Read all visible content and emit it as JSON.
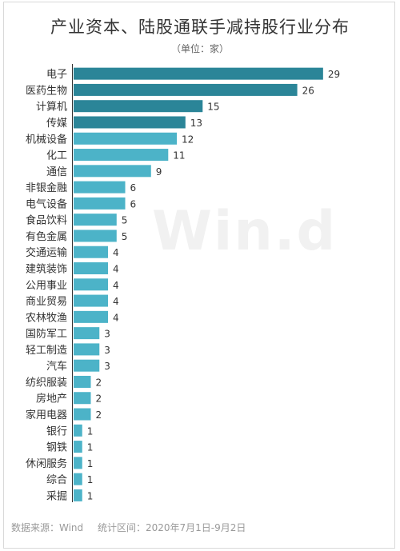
{
  "title": "产业资本、陆股通联手减持股行业分布",
  "subtitle": "（单位：家）",
  "watermark": "Win.d",
  "footer": {
    "source": "数据来源：Wind",
    "period": "统计区间：2020年7月1日-9月2日"
  },
  "colors": {
    "bar_dark": "#2b8598",
    "bar_light": "#4cb3c8",
    "text": "#333333"
  },
  "chart_data": {
    "type": "bar",
    "orientation": "horizontal",
    "title": "产业资本、陆股通联手减持股行业分布",
    "subtitle": "（单位：家）",
    "categories": [
      "电子",
      "医药生物",
      "计算机",
      "传媒",
      "机械设备",
      "化工",
      "通信",
      "非银金融",
      "电气设备",
      "食品饮料",
      "有色金属",
      "交通运输",
      "建筑装饰",
      "公用事业",
      "商业贸易",
      "农林牧渔",
      "国防军工",
      "轻工制造",
      "汽车",
      "纺织服装",
      "房地产",
      "家用电器",
      "银行",
      "钢铁",
      "休闲服务",
      "综合",
      "采掘"
    ],
    "values": [
      29,
      26,
      15,
      13,
      12,
      11,
      9,
      6,
      6,
      5,
      5,
      4,
      4,
      4,
      4,
      4,
      3,
      3,
      3,
      2,
      2,
      2,
      1,
      1,
      1,
      1,
      1
    ],
    "xlim": [
      0,
      30
    ],
    "data_labels": true,
    "grid": false,
    "legend": "none"
  }
}
